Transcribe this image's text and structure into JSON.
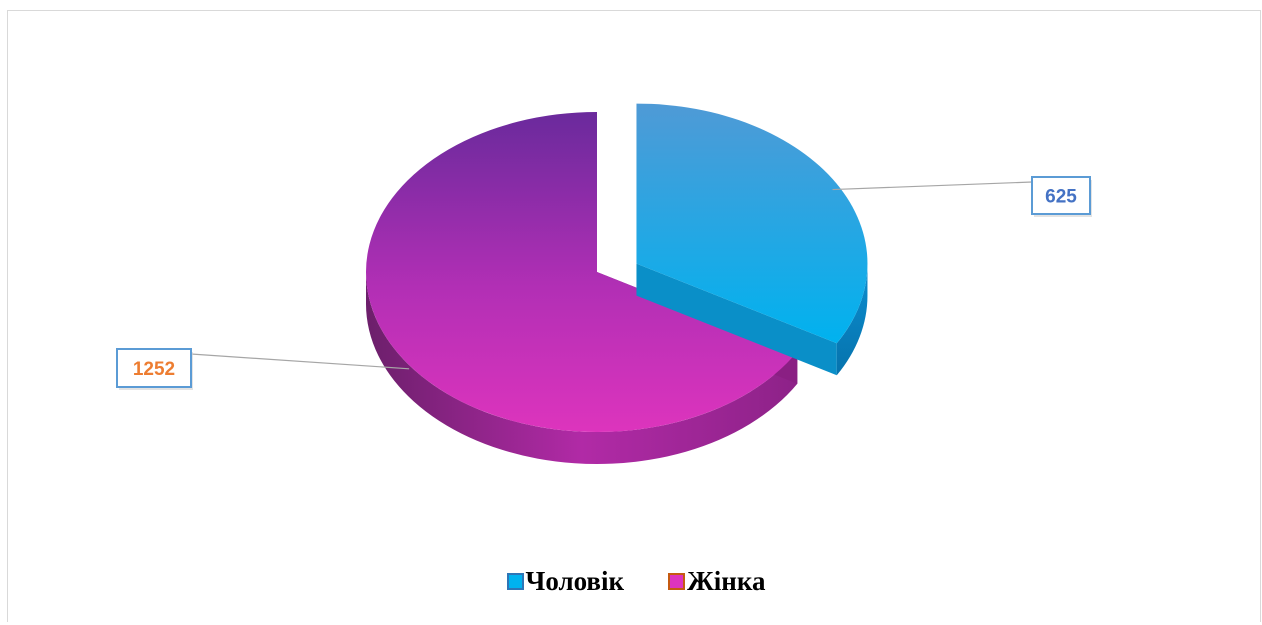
{
  "chart_data": {
    "type": "pie",
    "title": "",
    "categories": [
      "Чоловік",
      "Жінка"
    ],
    "values": [
      625,
      1252
    ],
    "series": [
      {
        "name": "",
        "values": [
          625,
          1252
        ]
      }
    ],
    "data_labels": [
      "625",
      "1252"
    ],
    "colors": {
      "male_top_light": "#4f9ad6",
      "male_top_dark": "#00b2ef",
      "male_side": "#0a8fc8",
      "female_top_light": "#6a2a9c",
      "female_top_dark": "#dd34bd",
      "female_side": "#a51f95",
      "male_label_border": "#5b9bd5",
      "male_label_text": "#4472c4",
      "female_label_border": "#5b9bd5",
      "female_label_text": "#ed7d31",
      "legend_male": "#2e75b6",
      "legend_female": "#c55a11"
    },
    "legend_position": "bottom",
    "exploded_slice": "Чоловік",
    "style": "3d-perspective"
  },
  "legend": {
    "male_label": "Чоловік",
    "female_label": "Жінка"
  }
}
